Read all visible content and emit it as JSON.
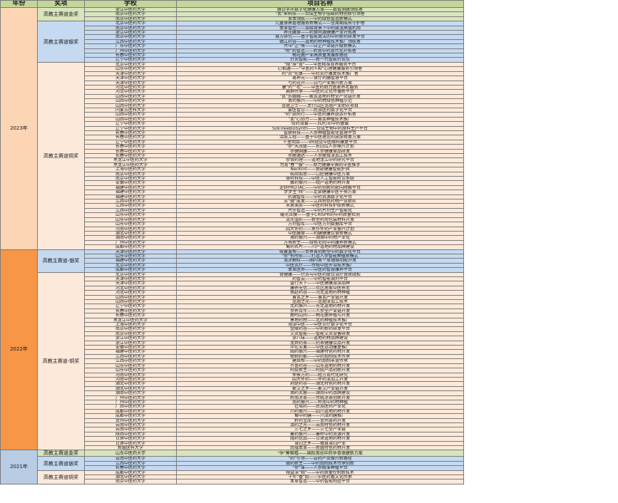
{
  "table": {
    "headers": [
      "年份",
      "奖项",
      "学校",
      "项目名称"
    ],
    "years": [
      {
        "year": "2023年",
        "color": "#fcd5b4",
        "awards": [
          {
            "award": "高教主赛道金奖",
            "color": "#d8e4bc",
            "rows": [
              [
                "浙江中医药大学",
                "脉诊手环数字化健康方案——数智测脉领航者"
              ],
              [
                "南京中医药大学",
                "\"芪\"来科技——合成生物学低碳药材创新引领者"
              ],
              [
                "南京中医药大学",
                "草本领航——中药绿色智造新模式"
              ]
            ]
          },
          {
            "award": "高教主赛道银奖",
            "color": "#c5d9f1",
            "rows": [
              [
                "北京中医药大学",
                "儿童身高管理服务新模式——全周期成长守护者"
              ],
              [
                "南京中医药大学",
                "本草智控——双碳背景下中药废渣高值利用"
              ],
              [
                "浙江中医药大学",
                "养元膳食——药食同源健康产业开拓者"
              ],
              [
                "南京中医药大学",
                "慧方研究——基于智能算法的中药新药研发平台"
              ],
              [
                "江西中医药大学",
                "赣江药谷——道地药材种植技术推广领航者"
              ],
              [
                "广东中医药大学",
                "片中\"芷\"境——白芷产业链升级新模式"
              ],
              [
                "广州中医药大学",
                "\"岭\"药智造——岭南中药现代化开拓者"
              ],
              [
                "长春中医药大学",
                "梅花鹿产业高质量发展新路径"
              ],
              [
                "辽宁中医药大学",
                "针灸智能——新一代智能针灸仪"
              ]
            ]
          },
          {
            "award": "高教主赛道铜奖",
            "color": "#fde9d9",
            "rows": [
              [
                "北京中医药大学",
                "\"精\"准\"育\"——中医精准育养服务平台"
              ],
              [
                "山东中医药大学",
                "心相通——\"中医药+AI\"心理健康服务引领者"
              ],
              [
                "天津中医药大学",
                "药\"灸\"先锋——中药灸疗康复技术推广者"
              ],
              [
                "天津中医药大学",
                "易养元——食疗药膳智慧平台"
              ],
              [
                "天津中医药大学",
                "芍药花开——白芍产业振兴新方案"
              ],
              [
                "河北中医药大学",
                "康\"药\"\"老\"——中医药助力居家养老服务"
              ],
              [
                "河北中医药大学",
                "扁鹊传承——中医药文化传播新平台"
              ],
              [
                "山西中医药大学",
                "\"芪\"乐融融——黄芪道地药材全产业链开发"
              ],
              [
                "山西中医药大学",
                "晋药振兴——中药材绿色种植示范"
              ],
              [
                "山西中医药大学",
                "连翘卫士——太行山区连翘产业助农项目"
              ],
              [
                "内蒙古医科大学",
                "蒙医智诊——民族医药数字化平台"
              ],
              [
                "山西中医药大学",
                "\"药\"旅同行——中医药康养旅游开拓者"
              ],
              [
                "山西中医药大学",
                "\"芪\"心协力——黄芪种植技术推广"
              ],
              [
                "辽宁中医药大学",
                "伯药清囊——3D打印中药香囊"
              ],
              [
                "辽宁中医药大学",
                "SilkTreeBioSynth——合成生物中药原料生产平台"
              ],
              [
                "长春中医药大学",
                "智耕科技——人参种植智能化管理平台"
              ],
              [
                "长春中医药大学",
                "活肤工程——基于中医理论的皮肤修复方案"
              ],
              [
                "辽宁中医药大学",
                "千里明目——VR视觉中医眼科康复平台"
              ],
              [
                "长春中医药大学",
                "\"参\"天茂盛——长白山人参振兴计划"
              ],
              [
                "长春中医药大学",
                "参健国康——人参健康食品研发"
              ],
              [
                "长春中医药大学",
                "参鹿通达——人参鹿茸深加工技术"
              ],
              [
                "黑龙江中医药大学",
                "参悟药理——道地龙江中药研究平台"
              ],
              [
                "黑龙江中医药大学",
                "为育\"春\"\"服\"——助力健康中国的中医推手"
              ],
              [
                "上海中医药大学",
                "NecKnit——颈部健康智能护具"
              ],
              [
                "南京中医药大学",
                "皓齿如意——口腔健康中医方案"
              ],
              [
                "南京中医药大学",
                "慧听科技——中医人工智能听诊系统"
              ],
              [
                "安徽中医药大学",
                "徽药振兴——皖产道地药材开发"
              ],
              [
                "福建中医药大学",
                "逆转PROTAC——中药创新药靶向降解平台"
              ],
              [
                "福建中医药大学",
                "步步生\"辉\"——足部健康中医干预方案"
              ],
              [
                "福建中医药大学",
                "药源智库——中药资源数字化平台"
              ],
              [
                "江西中医药大学",
                "从\"赣\"出发——江西特色药材产业助农"
              ],
              [
                "江西中医药大学",
                "禾泉美肤——中医药科技护肤新模式"
              ],
              [
                "江西中医药大学",
                "片仔智造——中药片剂生产智能化"
              ],
              [
                "山东中医药大学",
                "暖光旦膜——基于CRISPR的中药质量检测"
              ],
              [
                "山东中医药大学",
                "流光溢彩——新型药用包装材料开发"
              ],
              [
                "山东中医药大学",
                "方剂智库——中医方剂数据库平台"
              ],
              [
                "河南中医药大学",
                "四大怀药——焦作怀药产业振兴计划"
              ],
              [
                "湖北中医药大学",
                "中医膳食——药膳健康饮食新模式"
              ],
              [
                "湖南中医药大学",
                "湘药振兴——湖湘中药材产业化"
              ],
              [
                "广州中医药大学",
                "万寿新生——绿色宅院中药康养新模式"
              ],
              [
                "成都中医药大学",
                "蜀药名片——川产道地药材品牌建设"
              ]
            ]
          }
        ]
      },
      {
        "year": "2022年",
        "color": "#f79646",
        "awards": [
          {
            "award": "高教主赛道-银奖",
            "color": "#c5d9f1",
            "rows": [
              [
                "天津中医药大学",
                "岐黄重帮——世界首创新型中药数字化平台"
              ],
              [
                "山东中医药大学",
                "\"参\"有所依——打造人参智能种植新模式"
              ],
              [
                "福建中医药大学",
                "清凉颗粒——国内首个草珊瑚功能开发"
              ],
              [
                "北京中医药大学",
                "中医灸疗——传统中医外治技术推广"
              ],
              [
                "成都中医药大学",
                "本草医养——中医药智慧康养平台"
              ]
            ]
          },
          {
            "award": "高教主赛道-铜奖",
            "color": "#fde9d9",
            "rows": [
              [
                "北京中医药大学",
                "骨健康——针灸与中医药联合治疗骨质疏松"
              ],
              [
                "天津中医药大学",
                "药智云——中药智能调剂平台"
              ],
              [
                "天津中医药大学",
                "益行天下——中医健康旅游品牌"
              ],
              [
                "河北中医药大学",
                "康养无忧——社区居家中医养老"
              ],
              [
                "河北中医药大学",
                "燕赵药谷——河北道地药材种植"
              ],
              [
                "山西中医药大学",
                "黄芪之乡——黄芪产业链开发"
              ],
              [
                "山西中医药大学",
                "连翘之光——连翘深加工技术"
              ],
              [
                "辽宁中医药大学",
                "北药振兴——东北道地药材开发"
              ],
              [
                "长春中医药大学",
                "参养百年——人参全产业链开发"
              ],
              [
                "长春中医药大学",
                "鹿鸣山间——梅花鹿养殖与开发"
              ],
              [
                "黑龙江中医药大学",
                "寒地药材——北药种植技术推广"
              ],
              [
                "上海中医药大学",
                "海派中医——中医诊疗数字化平台"
              ],
              [
                "南京中医药大学",
                "金陵药谷——中药新药研发平台"
              ],
              [
                "南京中医药大学",
                "艾灸智能——智能艾灸设备研发"
              ],
              [
                "浙江中医药大学",
                "浙八味——道地药材品牌建设"
              ],
              [
                "浙江中医药大学",
                "龙井药茶——药茶健康饮品开发"
              ],
              [
                "安徽中医药大学",
                "华佗五禽——中医运动康复推广"
              ],
              [
                "福建中医药大学",
                "闽药振兴——福建特色药材开发"
              ],
              [
                "江西中医药大学",
                "樟树药都——中药炮制技术传承"
              ],
              [
                "江西中医药大学",
                "建昌帮——中药炮制非遗传承"
              ],
              [
                "山东中医药大学",
                "齐鲁药谷——山东道地药材开发"
              ],
              [
                "山东中医药大学",
                "阿胶新生——阿胶产品创新开发"
              ],
              [
                "河南中医药大学",
                "仲景方药——经方现代化研究"
              ],
              [
                "河南中医药大学",
                "四大怀药——怀药深加工开发"
              ],
              [
                "湖北中医药大学",
                "荆楚药谷——湖北特色药材开发"
              ],
              [
                "湖北中医药大学",
                "蕲艾之乡——蕲艾产业链开发"
              ],
              [
                "湖南中医药大学",
                "湘药芙蓉——湖南中药品牌建设"
              ],
              [
                "广州中医药大学",
                "岭南凉茶——传统凉茶创新开发"
              ],
              [
                "广州中医药大学",
                "南药振兴——岭南中药材种植"
              ],
              [
                "广西中医药大学",
                "壮瑶药——民族医药产业化"
              ],
              [
                "成都中医药大学",
                "川药振兴——四川道地药材开发"
              ],
              [
                "成都中医药大学",
                "蜀中药膳——川派药膳推广"
              ],
              [
                "贵州中医药大学",
                "黔药宝库——贵州苗药开发"
              ],
              [
                "云南中医药大学",
                "滇药之光——云南特色药材开发"
              ],
              [
                "云南中医药大学",
                "三七之乡——三七全产业链"
              ],
              [
                "陕西中医药大学",
                "秦药振兴——秦岭中药资源开发"
              ],
              [
                "甘肃中医药大学",
                "陇药优品——甘肃道地药材开发"
              ],
              [
                "甘肃中医药大学",
                "当归之乡——岷县当归产业"
              ],
              [
                "新疆医科大学",
                "西域本草——新疆特色药材开发"
              ]
            ]
          }
        ]
      },
      {
        "year": "2021年",
        "color": "#b8cce4",
        "awards": [
          {
            "award": "高教主赛道金奖",
            "color": "#d8e4bc",
            "rows": [
              [
                "山东中医药大学",
                "\"孕\"筹帷幄——国际首创中药孕育保健新方案"
              ]
            ]
          },
          {
            "award": "高教主赛道银奖",
            "color": "#c5d9f1",
            "rows": [
              [
                "云南中医药大学",
                "\"药\"引领——云药产业振兴新路径"
              ],
              [
                "江西中医药大学",
                "赣药新生——中药炮制技术传承创新"
              ],
              [
                "长春中医药大学",
                "\"参\"谋——人参精准种植平台"
              ]
            ]
          },
          {
            "award": "高教主赛道铜奖",
            "color": "#fde9d9",
            "rows": [
              [
                "成都中医药大学",
                "精益求\"精\"——中药质量控制新技术"
              ],
              [
                "湖北中医药大学",
                "千年\"香\"韵——中医药香文化传承"
              ],
              [
                "南京中医药大学",
                "本草智造——中药智能制造平台"
              ]
            ]
          }
        ]
      }
    ]
  }
}
